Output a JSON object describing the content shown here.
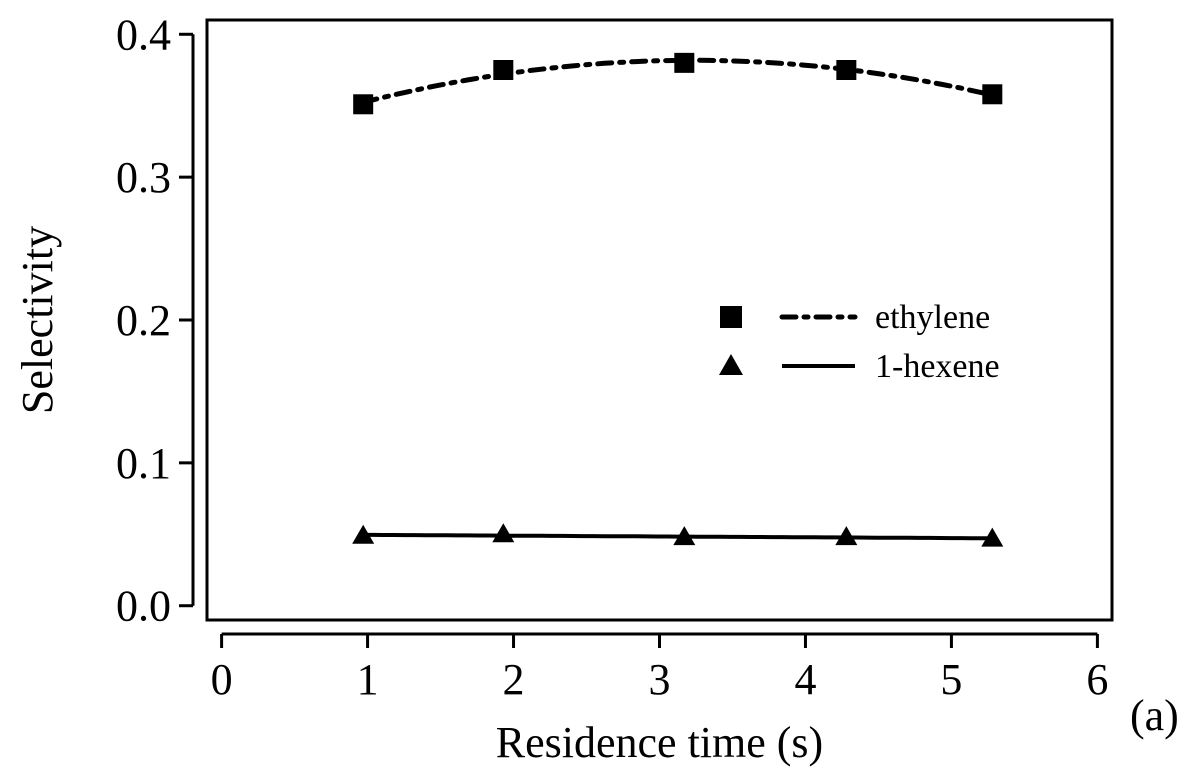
{
  "chart_data": {
    "type": "line",
    "panel_label": "(a)",
    "xlabel": "Residence time (s)",
    "ylabel": "Selectivity",
    "xlim": [
      -0.1,
      6.1
    ],
    "ylim": [
      -0.01,
      0.41
    ],
    "x_ticks": [
      0,
      1,
      2,
      3,
      4,
      5,
      6
    ],
    "x_tick_labels": [
      "0",
      "1",
      "2",
      "3",
      "4",
      "5",
      "6"
    ],
    "y_ticks": [
      0.0,
      0.1,
      0.2,
      0.3,
      0.4
    ],
    "y_tick_labels": [
      "0.0",
      "0.1",
      "0.2",
      "0.3",
      "0.4"
    ],
    "grid": false,
    "legend_position": "right-middle",
    "series": [
      {
        "name": "ethylene",
        "marker": "square",
        "line_style": "dash-dot",
        "x": [
          0.97,
          1.93,
          3.17,
          4.28,
          5.28
        ],
        "y": [
          0.351,
          0.375,
          0.38,
          0.375,
          0.358
        ],
        "fit": "quadratic"
      },
      {
        "name": "1-hexene",
        "marker": "triangle",
        "line_style": "solid",
        "x": [
          0.97,
          1.93,
          3.17,
          4.28,
          5.28
        ],
        "y": [
          0.049,
          0.05,
          0.048,
          0.048,
          0.047
        ],
        "fit": "linear"
      }
    ]
  }
}
